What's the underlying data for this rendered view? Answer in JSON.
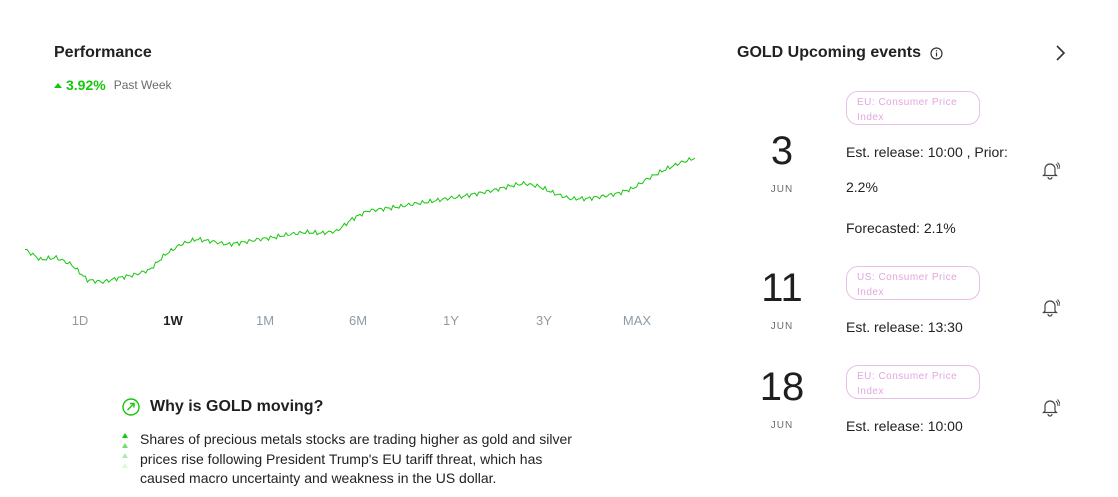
{
  "performance": {
    "title": "Performance",
    "change_value": "3.92%",
    "change_period": "Past Week",
    "change_direction": "up",
    "accent_color": "#16c60c",
    "timeframes": [
      "1D",
      "1W",
      "1M",
      "6M",
      "1Y",
      "3Y",
      "MAX"
    ],
    "active_timeframe": "1W"
  },
  "why": {
    "title": "Why is GOLD moving?",
    "lines": [
      "Shares of precious metals stocks are trading higher as gold and silver",
      "prices rise following President Trump's EU tariff threat, which has",
      "caused macro uncertainty and weakness in the US dollar."
    ]
  },
  "events": {
    "title": "GOLD Upcoming events",
    "items": [
      {
        "day": "3",
        "month": "JUN",
        "badge": "EU: Consumer Price Index",
        "line1": "Est. release: 10:00 , Prior:",
        "line2": "2.2%",
        "line3": "Forecasted: 2.1%"
      },
      {
        "day": "11",
        "month": "JUN",
        "badge": "US: Consumer Price Index",
        "line1": "Est. release: 13:30"
      },
      {
        "day": "18",
        "month": "JUN",
        "badge": "EU: Consumer Price Index",
        "line1": "Est. release: 10:00"
      }
    ]
  },
  "chart_data": {
    "type": "line",
    "series": [
      {
        "values": [
          0.5,
          0.4,
          0.42,
          0.35,
          0.2,
          0.18,
          0.22,
          0.25,
          0.3,
          0.45,
          0.55,
          0.6,
          0.58,
          0.55,
          0.57,
          0.6,
          0.62,
          0.65,
          0.67,
          0.66,
          0.68,
          0.8,
          0.88,
          0.9,
          0.92,
          0.95,
          0.97,
          1.0,
          1.02,
          1.05,
          1.08,
          1.12,
          1.15,
          1.12,
          1.05,
          1.0,
          1.0,
          1.02,
          1.05,
          1.1,
          1.2,
          1.28,
          1.35,
          1.4
        ]
      }
    ],
    "color": "#16c60c",
    "grid": false,
    "legend": "none"
  }
}
